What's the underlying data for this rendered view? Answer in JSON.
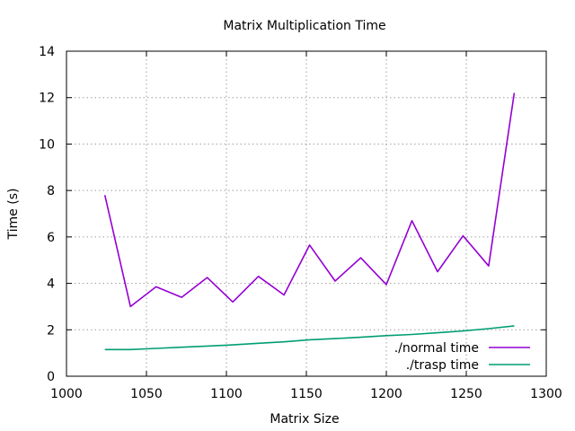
{
  "chart_data": {
    "type": "line",
    "title": "Matrix Multiplication Time",
    "xlabel": "Matrix Size",
    "ylabel": "Time (s)",
    "xlim": [
      1000,
      1300
    ],
    "ylim": [
      0,
      14
    ],
    "xticks": [
      1000,
      1050,
      1100,
      1150,
      1200,
      1250,
      1300
    ],
    "yticks": [
      0,
      2,
      4,
      6,
      8,
      10,
      12,
      14
    ],
    "grid": true,
    "legend_position": "bottom-right",
    "series": [
      {
        "name": "./normal time",
        "color": "#9400d3",
        "x": [
          1024,
          1040,
          1056,
          1072,
          1088,
          1104,
          1120,
          1136,
          1152,
          1168,
          1184,
          1200,
          1216,
          1232,
          1248,
          1264,
          1280
        ],
        "y": [
          7.8,
          3.0,
          3.85,
          3.4,
          4.25,
          3.2,
          4.3,
          3.5,
          5.65,
          4.1,
          5.1,
          3.95,
          6.7,
          4.5,
          6.05,
          4.75,
          12.2
        ]
      },
      {
        "name": "./trasp time",
        "color": "#009e73",
        "x": [
          1024,
          1040,
          1056,
          1072,
          1088,
          1104,
          1120,
          1136,
          1152,
          1168,
          1184,
          1200,
          1216,
          1232,
          1248,
          1264,
          1280
        ],
        "y": [
          1.15,
          1.15,
          1.2,
          1.25,
          1.3,
          1.35,
          1.42,
          1.48,
          1.57,
          1.62,
          1.68,
          1.75,
          1.8,
          1.87,
          1.95,
          2.05,
          2.17
        ]
      }
    ]
  }
}
